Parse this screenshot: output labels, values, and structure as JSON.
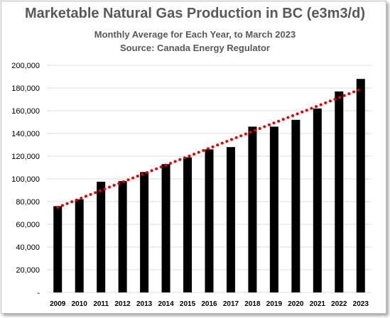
{
  "chart_data": {
    "type": "bar",
    "title": "Marketable Natural Gas Production in BC (e3m3/d)",
    "subtitle_1": "Monthly Average for Each Year, to March 2023",
    "subtitle_2": "Source: Canada Energy Regulator",
    "categories": [
      "2009",
      "2010",
      "2011",
      "2012",
      "2013",
      "2014",
      "2015",
      "2016",
      "2017",
      "2018",
      "2019",
      "2020",
      "2021",
      "2022",
      "2023"
    ],
    "values": [
      76000,
      82000,
      97500,
      98000,
      106000,
      113000,
      119000,
      126000,
      128000,
      146000,
      146000,
      152000,
      162000,
      177000,
      188000
    ],
    "ylim": [
      0,
      200000
    ],
    "yticks": [
      0,
      20000,
      40000,
      60000,
      80000,
      100000,
      120000,
      140000,
      160000,
      180000,
      200000
    ],
    "ytick_labels": [
      "-",
      "20,000",
      "40,000",
      "60,000",
      "80,000",
      "100,000",
      "120,000",
      "140,000",
      "160,000",
      "180,000",
      "200,000"
    ],
    "grid": true,
    "bar_color": "#000000",
    "trendline": {
      "type": "linear",
      "style": "dotted",
      "color": "#e00000",
      "start": 75000,
      "end": 179000
    }
  }
}
